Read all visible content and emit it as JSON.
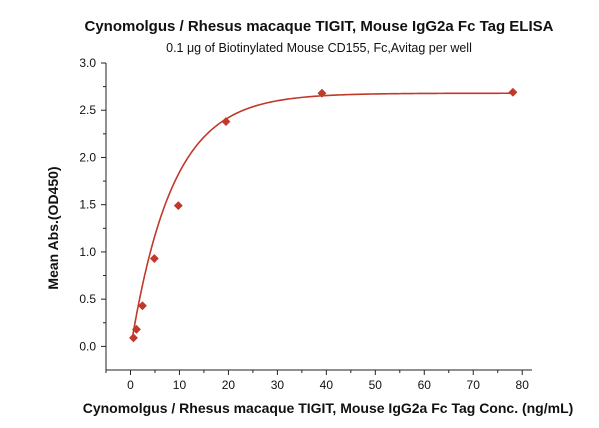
{
  "chart_data": {
    "type": "scatter",
    "title": "Cynomolgus / Rhesus macaque TIGIT, Mouse IgG2a Fc Tag ELISA",
    "subtitle": "0.1 μg of Biotinylated Mouse CD155, Fc,Avitag per well",
    "xlabel": "Cynomolgus / Rhesus macaque TIGIT, Mouse IgG2a Fc Tag Conc. (ng/mL)",
    "ylabel": "Mean Abs.(OD450)",
    "xlim": [
      -5,
      82
    ],
    "ylim": [
      -0.25,
      3.0
    ],
    "x_ticks": [
      0,
      10,
      20,
      30,
      40,
      50,
      60,
      70,
      80
    ],
    "y_ticks": [
      0.0,
      0.5,
      1.0,
      1.5,
      2.0,
      2.5,
      3.0
    ],
    "y_tick_format": "0.0",
    "grid": false,
    "legend": "none",
    "series": [
      {
        "marker": "diamond",
        "color": "#c0392b",
        "points": [
          {
            "x": 0.61,
            "y": 0.09
          },
          {
            "x": 1.22,
            "y": 0.18
          },
          {
            "x": 2.44,
            "y": 0.43
          },
          {
            "x": 4.88,
            "y": 0.93
          },
          {
            "x": 9.77,
            "y": 1.49
          },
          {
            "x": 19.5,
            "y": 2.38
          },
          {
            "x": 39.1,
            "y": 2.68
          },
          {
            "x": 78.1,
            "y": 2.69
          }
        ],
        "fit": {
          "color": "#c0392b",
          "model": "y = a - b * exp(-x / c)",
          "a": 2.68,
          "b": 2.71,
          "c": 8.5,
          "x_range": [
            0.4,
            78.5
          ]
        }
      }
    ]
  }
}
